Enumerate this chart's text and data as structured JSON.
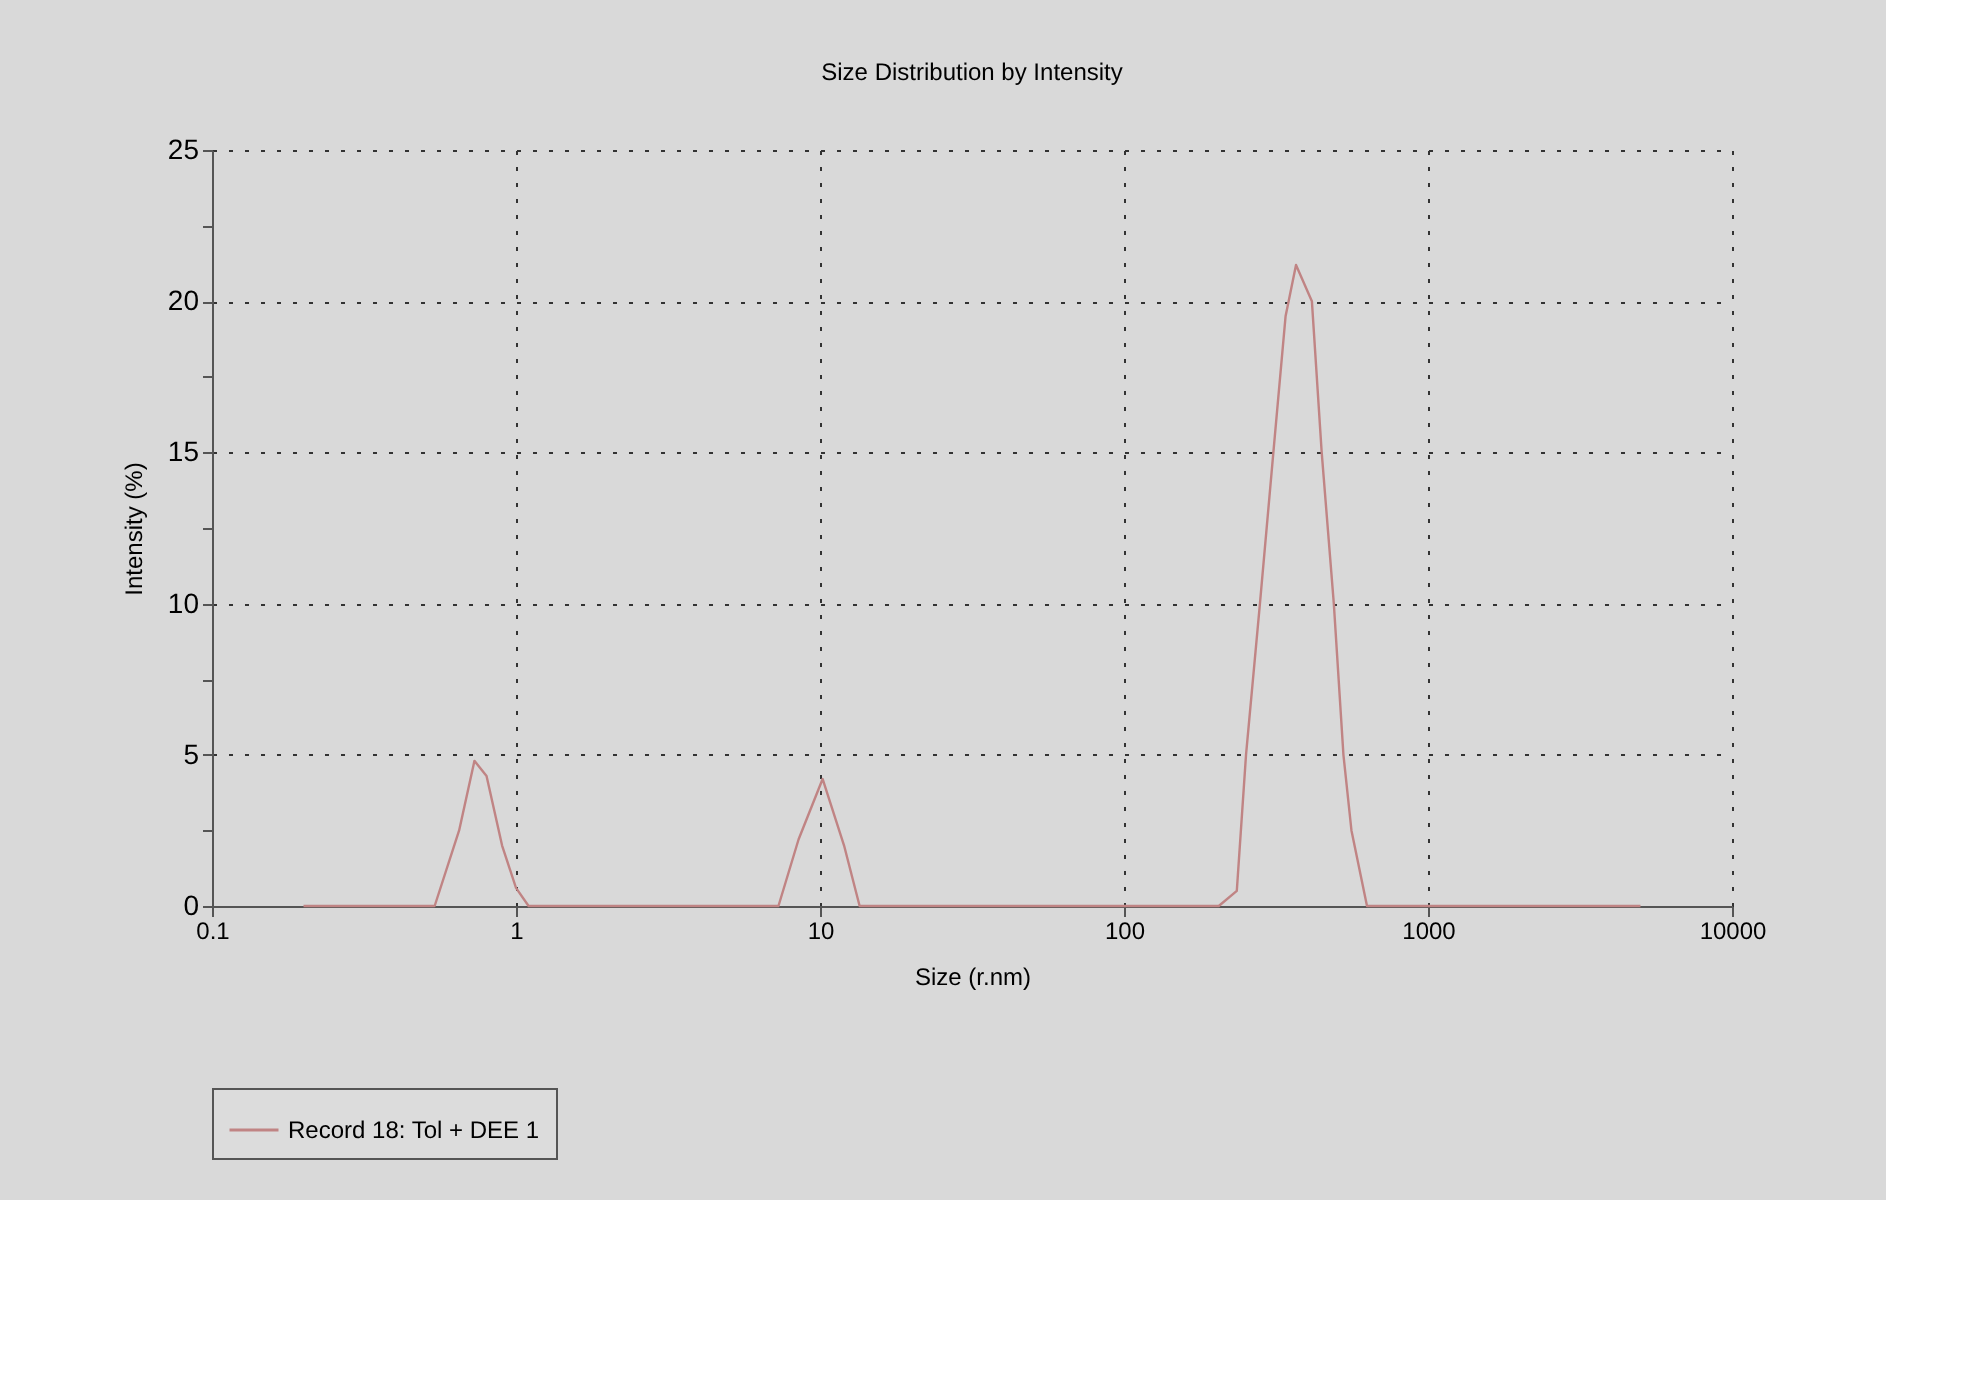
{
  "chart_data": {
    "type": "line",
    "title": "Size Distribution by Intensity",
    "xlabel": "Size (r.nm)",
    "ylabel": "Intensity (%)",
    "log": "x",
    "grid": true,
    "legend": "bottom",
    "marker": "none",
    "line_style": "solid",
    "xlim": [
      0.1,
      10000
    ],
    "xticks": [
      0.1,
      1,
      10,
      100,
      1000,
      10000
    ],
    "ylim": [
      0,
      25
    ],
    "yticks": [
      0,
      {
        "value": 2.5,
        "label": null
      },
      5,
      {
        "value": 7.5,
        "label": null
      },
      10,
      {
        "value": 12.5,
        "label": null
      },
      15,
      {
        "value": 17.5,
        "label": null
      },
      20,
      {
        "value": 22.5,
        "label": null
      },
      25
    ],
    "x": [
      0.2,
      0.3,
      0.4,
      0.54,
      0.65,
      0.73,
      0.8,
      0.9,
      1.0,
      1.1,
      2,
      4,
      7.3,
      8.5,
      10.2,
      12,
      13.5,
      30,
      100,
      205,
      235,
      252,
      280,
      310,
      340,
      368,
      415,
      447,
      490,
      527,
      560,
      630,
      1000,
      2000,
      5000
    ],
    "series": [
      {
        "name": "Record 18: Tol + DEE 1",
        "color": "#c08484",
        "values": [
          0,
          0,
          0,
          0,
          2.5,
          4.8,
          4.3,
          2.0,
          0.6,
          0,
          0,
          0,
          0,
          2.2,
          4.2,
          2.0,
          0,
          0,
          0,
          0,
          0.5,
          5,
          10,
          15,
          19.5,
          21.2,
          20,
          15,
          10,
          5,
          2.5,
          0,
          0,
          0,
          0
        ]
      }
    ]
  }
}
